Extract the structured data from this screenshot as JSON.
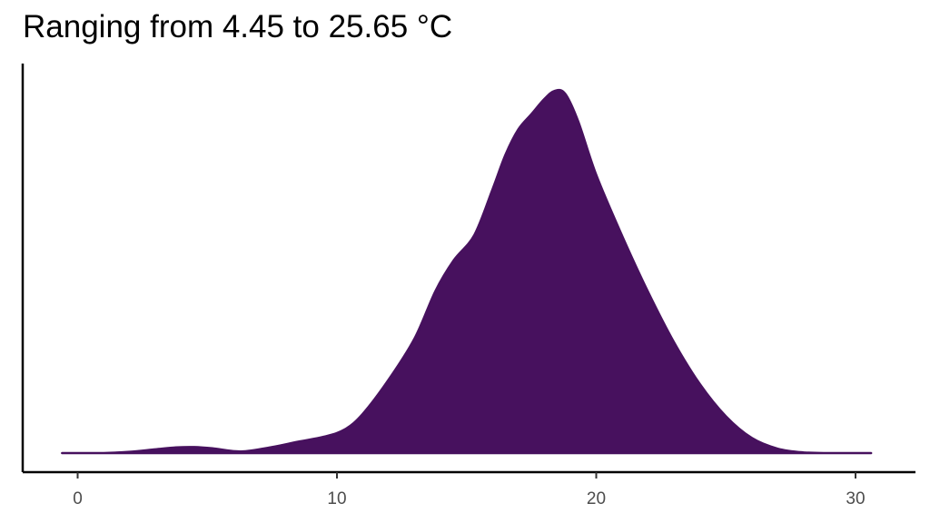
{
  "chart_data": {
    "type": "area",
    "title": "Ranging from 4.45 to 25.65 °C",
    "xlabel": "",
    "ylabel": "",
    "xlim": [
      -0.6,
      32.2
    ],
    "ylim": [
      0,
      0.118
    ],
    "x_ticks": [
      0,
      10,
      20,
      30
    ],
    "x_tick_labels": [
      "0",
      "10",
      "20",
      "30"
    ],
    "y_ticks": [],
    "grid": false,
    "legend": "none",
    "fill_color": "#47115e",
    "series": [
      {
        "x": [
          -0.6,
          1.0,
          2.0,
          3.0,
          3.8,
          4.5,
          5.2,
          6.3,
          7.5,
          8.5,
          9.5,
          10.3,
          11.0,
          12.0,
          13.0,
          13.8,
          14.5,
          15.3,
          16.0,
          16.5,
          17.0,
          17.5,
          18.0,
          18.4,
          18.8,
          19.3,
          20.0,
          21.0,
          22.0,
          23.0,
          24.0,
          25.0,
          26.0,
          27.0,
          28.0,
          29.0,
          30.0,
          30.6
        ],
        "y": [
          0.0,
          0.0,
          0.0004,
          0.0012,
          0.0018,
          0.0019,
          0.0015,
          0.0005,
          0.0019,
          0.0036,
          0.0052,
          0.0075,
          0.0125,
          0.0234,
          0.0365,
          0.0515,
          0.0612,
          0.0693,
          0.0838,
          0.0948,
          0.1029,
          0.1077,
          0.1125,
          0.1151,
          0.1142,
          0.1055,
          0.0884,
          0.069,
          0.0512,
          0.0352,
          0.0219,
          0.0117,
          0.0048,
          0.0014,
          0.0002,
          0.0,
          0.0,
          0.0
        ]
      }
    ]
  }
}
